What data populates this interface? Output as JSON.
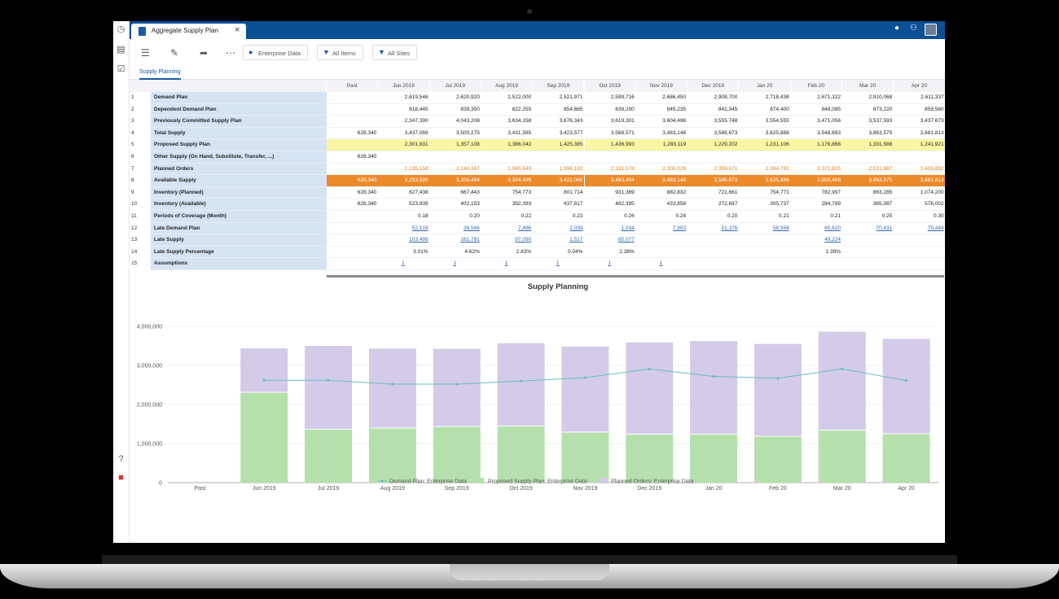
{
  "app": {
    "tab_title": "Aggregate Supply Plan",
    "close_glyph": "×"
  },
  "toolbar": {
    "enterprise_label": "Enterprise Data",
    "items_label": "All Items",
    "sites_label": "All Sites"
  },
  "subtab": "Supply Planning",
  "grid": {
    "columns": [
      "Past",
      "Jun 2019",
      "Jul 2019",
      "Aug 2019",
      "Sep 2019",
      "Oct 2019",
      "Nov 2019",
      "Dec 2019",
      "Jan 20",
      "Feb 20",
      "Mar 20",
      "Apr 20"
    ],
    "rows": [
      {
        "num": "1",
        "label": "Demand Plan",
        "cells": [
          "",
          "2,619,546",
          "2,620,920",
          "2,522,000",
          "2,521,971",
          "2,599,716",
          "2,686,450",
          "2,908,700",
          "2,718,438",
          "2,671,322",
          "2,910,068",
          "2,611,337"
        ]
      },
      {
        "num": "2",
        "label": "Dependent Demand Plan",
        "cells": [
          "",
          "818,445",
          "839,350",
          "822,255",
          "854,665",
          "839,200",
          "845,235",
          "841,345",
          "874,400",
          "849,085",
          "873,220",
          "859,560"
        ]
      },
      {
        "num": "3",
        "label": "Previously Committed Supply Plan",
        "cells": [
          "",
          "2,347,390",
          "4,043,208",
          "3,634,158",
          "3,676,343",
          "3,619,301",
          "3,604,496",
          "3,555,748",
          "3,554,555",
          "3,471,056",
          "3,537,593",
          "3,437,673"
        ]
      },
      {
        "num": "4",
        "label": "Total Supply",
        "cells": [
          "628,340",
          "3,437,089",
          "3,500,275",
          "3,431,585",
          "3,423,577",
          "3,568,571",
          "3,483,148",
          "3,588,873",
          "3,625,888",
          "3,548,693",
          "3,863,575",
          "3,681,813"
        ]
      },
      {
        "num": "5",
        "label": "Proposed Supply Plan",
        "cells": [
          "",
          "2,301,931",
          "1,357,108",
          "1,386,042",
          "1,425,385",
          "1,436,993",
          "1,283,119",
          "1,229,202",
          "1,231,106",
          "1,176,868",
          "1,331,588",
          "1,241,921"
        ]
      },
      {
        "num": "6",
        "label": "Other Supply (On Hand, Substitute, Transfer, ...)",
        "cells": [
          "628,340",
          "",
          "",
          "",
          "",
          "",
          "",
          "",
          "",
          "",
          "",
          ""
        ]
      },
      {
        "num": "7",
        "label": "Planned Orders",
        "cells": [
          "",
          "1,135,158",
          "2,143,167",
          "2,045,543",
          "1,998,192",
          "2,131,578",
          "2,200,029",
          "2,359,671",
          "2,394,782",
          "2,371,825",
          "2,531,987",
          "2,439,892"
        ]
      },
      {
        "num": "8",
        "label": "Available Supply",
        "cells": [
          "628,340",
          "3,333,590",
          "3,338,484",
          "3,334,495",
          "3,422,060",
          "3,483,494",
          "3,483,148",
          "3,588,873",
          "3,625,888",
          "2,899,469",
          "3,863,575",
          "3,681,813"
        ]
      },
      {
        "num": "9",
        "label": "Inventory (Planned)",
        "cells": [
          "628,340",
          "627,438",
          "667,443",
          "754,773",
          "801,714",
          "931,369",
          "882,832",
          "721,661",
          "754,771",
          "782,997",
          "863,285",
          "1,074,200"
        ]
      },
      {
        "num": "10",
        "label": "Inventory (Available)",
        "cells": [
          "628,340",
          "523,939",
          "402,153",
          "392,393",
          "437,817",
          "482,395",
          "433,858",
          "272,687",
          "305,737",
          "284,799",
          "365,087",
          "576,002"
        ]
      },
      {
        "num": "11",
        "label": "Periods of Coverage (Month)",
        "cells": [
          "",
          "0.18",
          "0.20",
          "0.22",
          "0.23",
          "0.26",
          "0.24",
          "0.20",
          "0.21",
          "0.21",
          "0.25",
          "0.30"
        ]
      },
      {
        "num": "12",
        "label": "Late Demand Plan",
        "cells": [
          "",
          "52,519",
          "38,566",
          "7,896",
          "2,039",
          "1,034",
          "7,993",
          "51,376",
          "58,594",
          "65,820",
          "70,631",
          "75,448"
        ]
      },
      {
        "num": "13",
        "label": "Late Supply",
        "cells": [
          "",
          "103,499",
          "161,791",
          "97,090",
          "1,517",
          "85,077",
          "",
          "",
          "",
          "49,224",
          "",
          ""
        ]
      },
      {
        "num": "14",
        "label": "Late Supply Percentage",
        "cells": [
          "",
          "3.01%",
          "4.62%",
          "2.83%",
          "0.04%",
          "2.38%",
          "",
          "",
          "",
          "1.39%",
          "",
          ""
        ]
      },
      {
        "num": "15",
        "label": "Assumptions",
        "cells": [
          "",
          "1",
          "1",
          "1",
          "1",
          "1",
          "1",
          "",
          "",
          "",
          "",
          ""
        ]
      }
    ]
  },
  "colors": {
    "topbar": "#0b4f95",
    "row_label_bg": "#d6e3f3",
    "proposed_highlight": "#fbf6a3",
    "available_highlight": "#ec8a2b",
    "planned_text": "#e07b22",
    "link": "#3566b0",
    "demand_line": "#6bbcc5",
    "proposed_bar": "#b5e0ab",
    "planned_bar": "#d4cbe8"
  },
  "chart_data": {
    "type": "bar",
    "title": "Supply Planning",
    "categories": [
      "Past",
      "Jun 2019",
      "Jul 2019",
      "Aug 2019",
      "Sep 2019",
      "Oct 2019",
      "Nov 2019",
      "Dec 2019",
      "Jan 20",
      "Feb 20",
      "Mar 20",
      "Apr 20"
    ],
    "stacked": true,
    "ylim": [
      0,
      4000000
    ],
    "yticks": [
      "0",
      "1,000,000",
      "2,000,000",
      "3,000,000",
      "4,000,000"
    ],
    "ytick_values": [
      0,
      1000000,
      2000000,
      3000000,
      4000000
    ],
    "series": [
      {
        "name": "Demand Plan: Enterprise Data",
        "kind": "line",
        "values": [
          null,
          2619546,
          2620920,
          2522000,
          2521971,
          2599716,
          2686450,
          2908700,
          2718438,
          2671322,
          2910068,
          2611337
        ]
      },
      {
        "name": "Proposed Supply Plan: Enterprise Data",
        "kind": "bar",
        "values": [
          0,
          2301931,
          1357108,
          1386042,
          1425385,
          1436993,
          1283119,
          1229202,
          1231106,
          1176868,
          1331588,
          1241921
        ]
      },
      {
        "name": "Planned Orders: Enterprise Data",
        "kind": "bar",
        "values": [
          0,
          1135158,
          2143167,
          2045543,
          1998192,
          2131578,
          2200029,
          2359671,
          2394782,
          2371825,
          2531987,
          2439892
        ]
      }
    ],
    "legend_position": "bottom",
    "grid": true
  }
}
